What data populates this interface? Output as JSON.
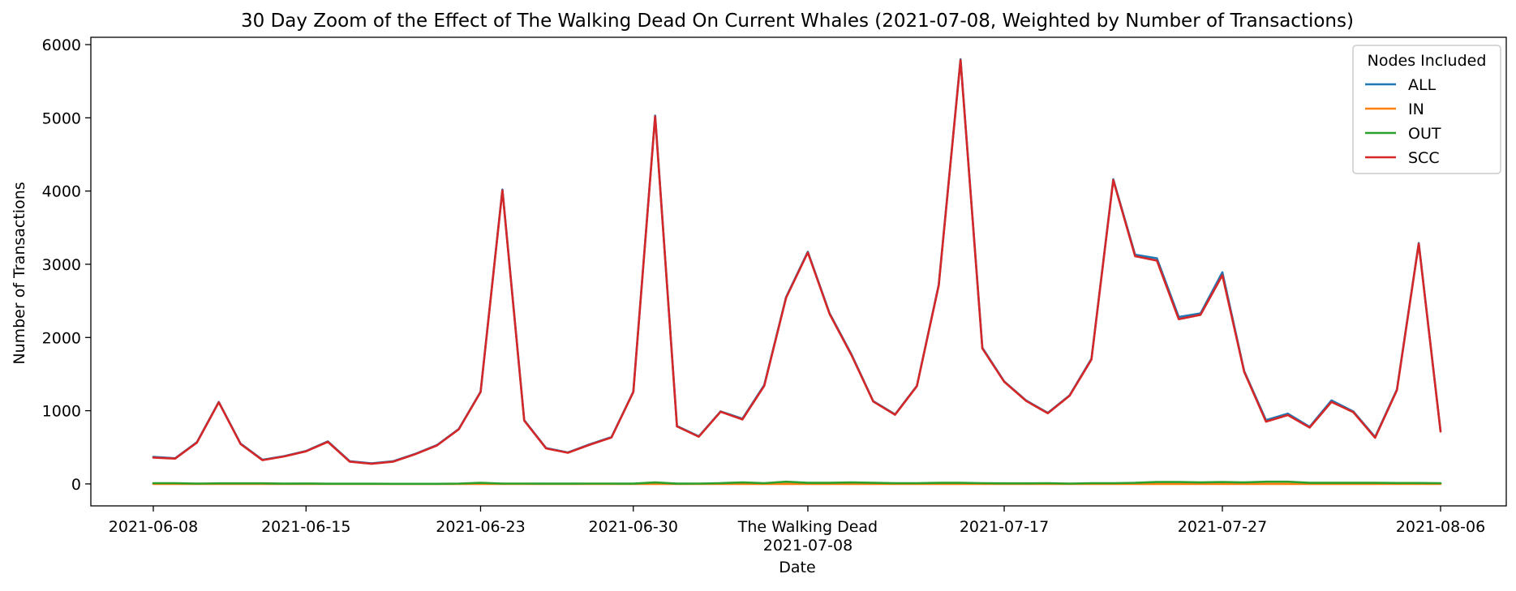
{
  "chart_data": {
    "type": "line",
    "title": "30 Day Zoom of the Effect of The Walking Dead On Current Whales (2021-07-08, Weighted by Number of Transactions)",
    "xlabel": "Date",
    "ylabel": "Number of Transactions",
    "ylim": [
      -300,
      6100
    ],
    "yticks": [
      0,
      1000,
      2000,
      3000,
      4000,
      5000,
      6000
    ],
    "xticks": [
      {
        "date": "2021-06-08",
        "label": "2021-06-08"
      },
      {
        "date": "2021-06-15",
        "label": "2021-06-15"
      },
      {
        "date": "2021-06-23",
        "label": "2021-06-23"
      },
      {
        "date": "2021-06-30",
        "label": "2021-06-30"
      },
      {
        "date": "2021-07-08",
        "label": "The Walking Dead\n2021-07-08"
      },
      {
        "date": "2021-07-17",
        "label": "2021-07-17"
      },
      {
        "date": "2021-07-27",
        "label": "2021-07-27"
      },
      {
        "date": "2021-08-06",
        "label": "2021-08-06"
      }
    ],
    "x": [
      "2021-06-08",
      "2021-06-09",
      "2021-06-10",
      "2021-06-11",
      "2021-06-12",
      "2021-06-13",
      "2021-06-14",
      "2021-06-15",
      "2021-06-16",
      "2021-06-17",
      "2021-06-18",
      "2021-06-19",
      "2021-06-20",
      "2021-06-21",
      "2021-06-22",
      "2021-06-23",
      "2021-06-24",
      "2021-06-25",
      "2021-06-26",
      "2021-06-27",
      "2021-06-28",
      "2021-06-29",
      "2021-06-30",
      "2021-07-01",
      "2021-07-02",
      "2021-07-03",
      "2021-07-04",
      "2021-07-05",
      "2021-07-06",
      "2021-07-07",
      "2021-07-08",
      "2021-07-09",
      "2021-07-10",
      "2021-07-11",
      "2021-07-12",
      "2021-07-13",
      "2021-07-14",
      "2021-07-15",
      "2021-07-16",
      "2021-07-17",
      "2021-07-18",
      "2021-07-19",
      "2021-07-20",
      "2021-07-21",
      "2021-07-22",
      "2021-07-23",
      "2021-07-24",
      "2021-07-25",
      "2021-07-26",
      "2021-07-27",
      "2021-07-28",
      "2021-07-29",
      "2021-07-30",
      "2021-07-31",
      "2021-08-01",
      "2021-08-02",
      "2021-08-03",
      "2021-08-04",
      "2021-08-05",
      "2021-08-06"
    ],
    "series": [
      {
        "name": "ALL",
        "color": "#1f77b4",
        "values": [
          370,
          350,
          570,
          1120,
          550,
          330,
          380,
          450,
          580,
          310,
          280,
          310,
          410,
          530,
          750,
          1260,
          4020,
          870,
          490,
          430,
          540,
          640,
          1260,
          5030,
          790,
          650,
          990,
          890,
          1350,
          2550,
          3170,
          2330,
          1770,
          1130,
          950,
          1340,
          2720,
          5800,
          1860,
          1400,
          1140,
          970,
          1210,
          1710,
          4160,
          3130,
          3080,
          2280,
          2330,
          2890,
          1540,
          870,
          960,
          780,
          1140,
          990,
          640,
          1290,
          3290,
          720
        ]
      },
      {
        "name": "IN",
        "color": "#ff7f0e",
        "values": [
          0,
          0,
          0,
          0,
          0,
          0,
          0,
          0,
          0,
          0,
          0,
          0,
          0,
          0,
          0,
          0,
          0,
          0,
          0,
          0,
          0,
          0,
          0,
          0,
          0,
          0,
          0,
          0,
          0,
          0,
          0,
          0,
          0,
          0,
          0,
          0,
          0,
          0,
          0,
          0,
          0,
          0,
          0,
          0,
          0,
          0,
          0,
          0,
          0,
          0,
          0,
          0,
          0,
          0,
          0,
          0,
          0,
          0,
          0,
          0
        ]
      },
      {
        "name": "OUT",
        "color": "#2ca02c",
        "values": [
          10,
          10,
          5,
          8,
          8,
          8,
          3,
          6,
          2,
          2,
          2,
          1,
          1,
          1,
          5,
          15,
          5,
          5,
          3,
          3,
          5,
          5,
          3,
          20,
          3,
          5,
          10,
          20,
          10,
          30,
          15,
          15,
          20,
          15,
          10,
          10,
          15,
          15,
          10,
          8,
          8,
          10,
          5,
          10,
          10,
          15,
          25,
          25,
          20,
          25,
          20,
          30,
          30,
          15,
          15,
          15,
          15,
          12,
          12,
          10
        ]
      },
      {
        "name": "SCC",
        "color": "#d62728",
        "values": [
          360,
          345,
          565,
          1115,
          545,
          325,
          375,
          445,
          575,
          305,
          275,
          305,
          405,
          525,
          745,
          1255,
          4010,
          865,
          485,
          425,
          535,
          635,
          1255,
          5020,
          785,
          645,
          985,
          880,
          1340,
          2540,
          3160,
          2320,
          1760,
          1125,
          945,
          1335,
          2710,
          5790,
          1850,
          1395,
          1135,
          965,
          1205,
          1700,
          4150,
          3110,
          3050,
          2250,
          2310,
          2850,
          1530,
          850,
          940,
          770,
          1120,
          980,
          630,
          1280,
          3280,
          715
        ]
      }
    ],
    "legend": {
      "title": "Nodes Included",
      "placement": "top-right"
    },
    "grid": false
  }
}
